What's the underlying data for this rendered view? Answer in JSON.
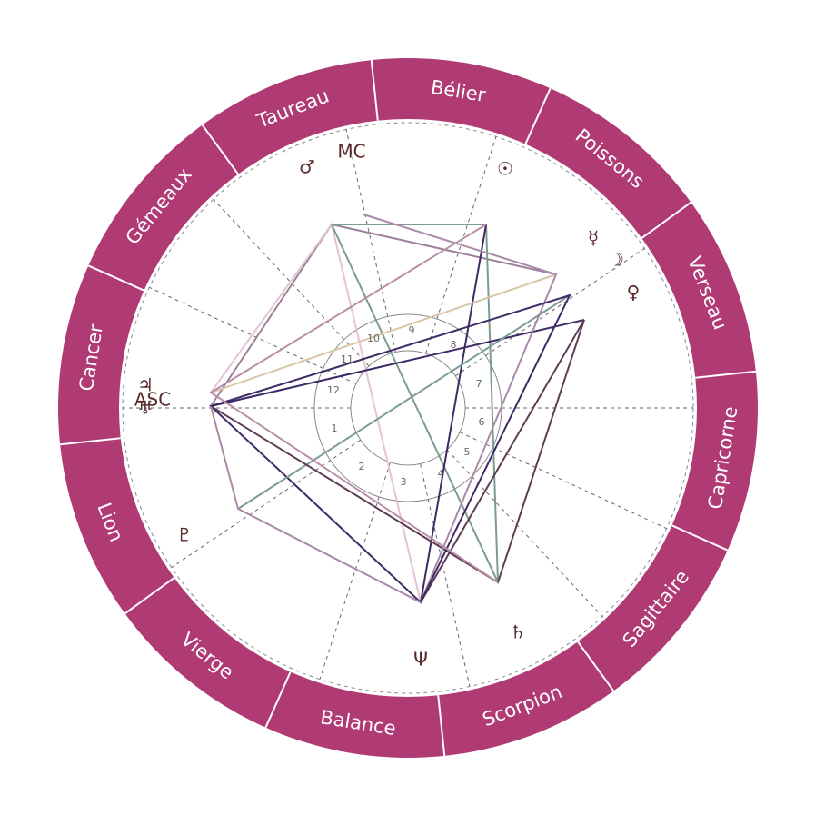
{
  "signs": [
    "Bélier",
    "Poissons",
    "Verseau",
    "Capricorne",
    "Sagittaire",
    "Scorpion",
    "Balance",
    "Vierge",
    "Lion",
    "Cancer",
    "Gémeaux",
    "Taureau"
  ],
  "houses": [
    "1",
    "2",
    "3",
    "4",
    "5",
    "6",
    "7",
    "8",
    "9",
    "10",
    "11",
    "12"
  ],
  "points": [
    {
      "label": "♂"
    },
    {
      "label": "MC"
    },
    {
      "label": "☉"
    },
    {
      "label": "☿"
    },
    {
      "label": "☽"
    },
    {
      "label": "♀"
    },
    {
      "label": "♃"
    },
    {
      "label": "ASC"
    },
    {
      "label": "♅"
    },
    {
      "label": "♇"
    },
    {
      "label": "Ψ"
    },
    {
      "label": "♄"
    }
  ]
}
